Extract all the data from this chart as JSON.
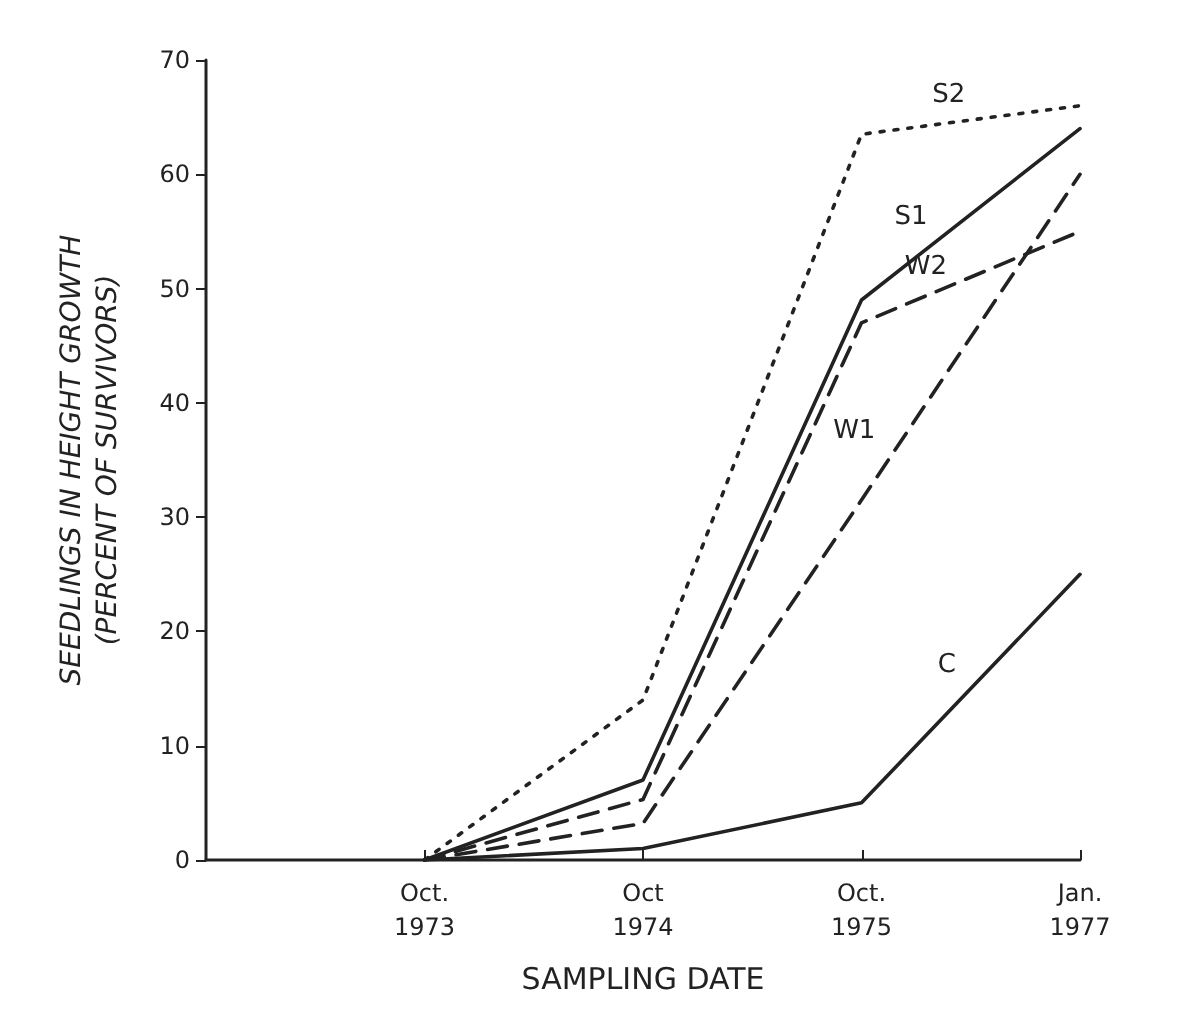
{
  "chart_data": {
    "type": "line",
    "xlabel": "SAMPLING DATE",
    "ylabel": "SEEDLINGS IN HEIGHT GROWTH\n(PERCENT OF SURVIVORS)",
    "categories": [
      null,
      "Oct.\n1973",
      "Oct\n1974",
      "Oct.\n1975",
      "Jan.\n1977"
    ],
    "ylim": [
      0,
      70
    ],
    "yticks": [
      0,
      10,
      20,
      30,
      40,
      50,
      60,
      70
    ],
    "grid": false,
    "legend": false,
    "marker": "none",
    "series": [
      {
        "name": "S2",
        "color": "#222222",
        "line_style": "dotted",
        "values": [
          null,
          0,
          14,
          63.5,
          66
        ]
      },
      {
        "name": "S1",
        "color": "#222222",
        "line_style": "solid",
        "values": [
          null,
          0,
          7,
          49,
          64
        ]
      },
      {
        "name": "W2",
        "color": "#222222",
        "line_style": "dashed",
        "values": [
          null,
          0,
          5.3,
          47,
          55
        ]
      },
      {
        "name": "W1",
        "color": "#222222",
        "line_style": "dashed",
        "values": [
          null,
          0,
          3.2,
          31.5,
          60
        ]
      },
      {
        "name": "C",
        "color": "#222222",
        "line_style": "solid",
        "values": [
          null,
          0,
          1,
          5,
          25
        ]
      }
    ]
  }
}
